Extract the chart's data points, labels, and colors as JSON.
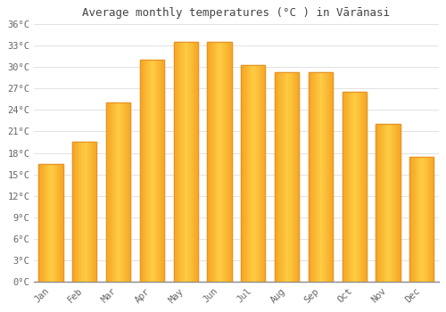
{
  "title": "Average monthly temperatures (°C ) in Vārānasi",
  "months": [
    "Jan",
    "Feb",
    "Mar",
    "Apr",
    "May",
    "Jun",
    "Jul",
    "Aug",
    "Sep",
    "Oct",
    "Nov",
    "Dec"
  ],
  "values": [
    16.5,
    19.5,
    25.0,
    31.0,
    33.5,
    33.5,
    30.3,
    29.3,
    29.3,
    26.5,
    22.0,
    17.5
  ],
  "bar_color_left": "#F5A623",
  "bar_color_center": "#FFCC44",
  "bar_color_right": "#F5A623",
  "bar_edge_color": "#E8922A",
  "background_color": "#FFFFFF",
  "grid_color": "#DDDDDD",
  "title_color": "#444444",
  "tick_label_color": "#666666",
  "ylim": [
    0,
    36
  ],
  "ytick_values": [
    0,
    3,
    6,
    9,
    12,
    15,
    18,
    21,
    24,
    27,
    30,
    33,
    36
  ],
  "figsize": [
    5.0,
    3.5
  ],
  "dpi": 100
}
